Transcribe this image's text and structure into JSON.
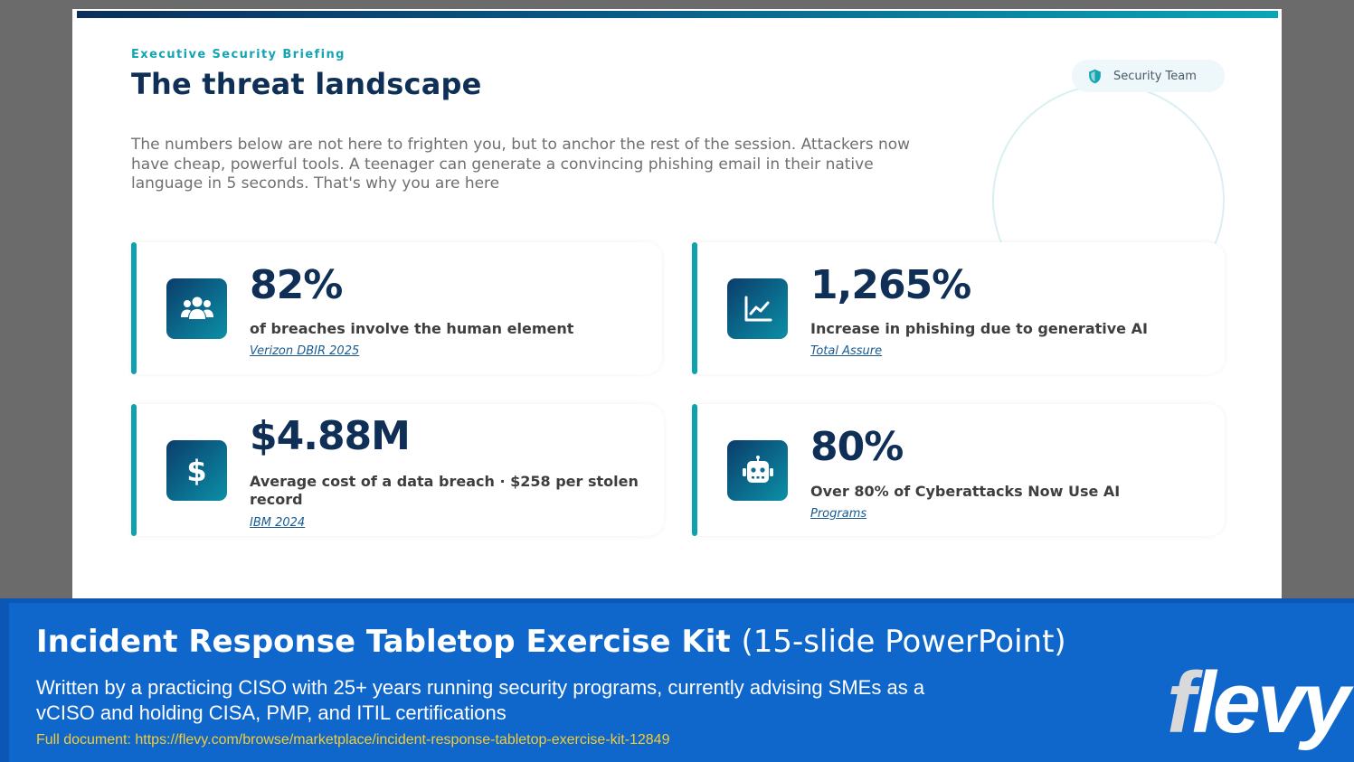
{
  "slide": {
    "eyebrow": "Executive Security Briefing",
    "title": "The threat landscape",
    "intro": "The numbers below are not here to frighten you, but to anchor the rest of the session. Attackers now have cheap, powerful tools. A teenager can generate a convincing phishing email in their native language in 5 seconds. That's why you are here",
    "team_badge": {
      "label": "Security Team",
      "icon": "shield-icon"
    },
    "colors": {
      "accent": "#0fa2ae",
      "navy": "#0f2f56"
    },
    "stats": [
      {
        "value": "82%",
        "description": "of breaches involve the human element",
        "source": "Verizon DBIR 2025",
        "icon": "users-icon"
      },
      {
        "value": "1,265%",
        "description": "Increase in phishing due to generative AI",
        "source": "Total Assure",
        "icon": "line-chart-icon"
      },
      {
        "value": "$4.88M",
        "description": "Average cost of a data breach · $258 per stolen record",
        "source": "IBM 2024",
        "icon": "dollar-icon"
      },
      {
        "value": "80%",
        "description": "Over 80% of Cyberattacks Now Use AI",
        "source": "Programs",
        "icon": "robot-icon"
      }
    ]
  },
  "banner": {
    "title": "Incident Response Tabletop Exercise Kit",
    "subtitle": "(15-slide PowerPoint)",
    "description": "Written by a practicing CISO with 25+ years running security programs, currently advising SMEs as a vCISO and holding CISA, PMP, and ITIL certifications",
    "link": "Full document: https://flevy.com/browse/marketplace/incident-response-tabletop-exercise-kit-12849",
    "logo": "flevy"
  }
}
